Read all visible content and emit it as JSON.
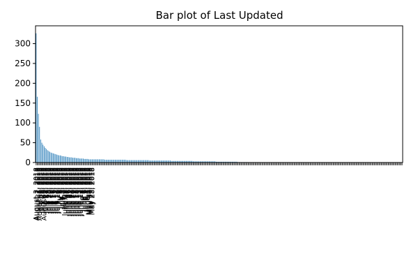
{
  "chart_data": {
    "type": "bar",
    "title": "Bar plot of Last Updated",
    "xlabel": "",
    "ylabel": "",
    "ylim": [
      0,
      345
    ],
    "yticks": [
      0,
      50,
      100,
      150,
      200,
      250,
      300
    ],
    "bar_color": "#1f77b4",
    "grid": false,
    "legend": "none",
    "categories": [
      "August 3, 2018",
      "August 2, 2018",
      "July 31, 2018",
      "August 1, 2018",
      "July 30, 2018",
      "July 25, 2018",
      "July 26, 2018",
      "August 6, 2018",
      "July 27, 2018",
      "July 24, 2018",
      "July 19, 2018",
      "July 23, 2018",
      "July 20, 2018",
      "July 18, 2018",
      "July 17, 2018",
      "July 16, 2018",
      "July 13, 2018",
      "July 12, 2018",
      "July 11, 2018",
      "July 10, 2018",
      "July 9, 2018",
      "July 6, 2018",
      "July 5, 2018",
      "July 3, 2018",
      "July 2, 2018",
      "June 29, 2018",
      "June 28, 2018",
      "June 27, 2018",
      "June 26, 2018",
      "June 25, 2018",
      "June 22, 2018",
      "June 21, 2018",
      "June 20, 2018",
      "June 19, 2018",
      "June 18, 2018",
      "June 15, 2018",
      "June 14, 2018",
      "June 13, 2018",
      "June 12, 2018",
      "June 11, 2018",
      "June 8, 2018",
      "June 7, 2018",
      "June 6, 2018",
      "June 5, 2018",
      "June 4, 2018",
      "June 1, 2018",
      "May 31, 2018",
      "May 30, 2018",
      "May 29, 2018",
      "May 28, 2018"
    ],
    "values": [
      326,
      166,
      123,
      90,
      58,
      50,
      45,
      41,
      37,
      34,
      31,
      29,
      27,
      25,
      24,
      23,
      22,
      21,
      20,
      19,
      18,
      18,
      17,
      16,
      16,
      15,
      15,
      14,
      14,
      13,
      13,
      13,
      12,
      12,
      12,
      11,
      11,
      11,
      10,
      10,
      10,
      10,
      9,
      9,
      9,
      9,
      8,
      8,
      8,
      8
    ],
    "tail_count": 270,
    "tail_start": 8,
    "tail_end": 1,
    "tail_zero_from": 135
  }
}
